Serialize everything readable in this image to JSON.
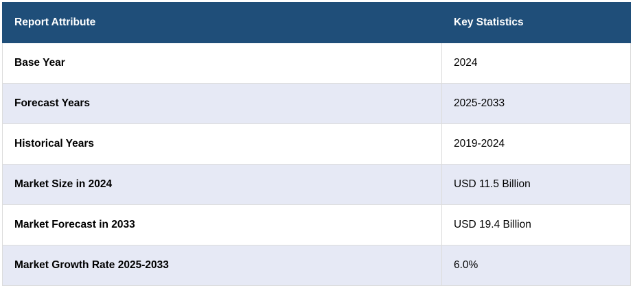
{
  "table": {
    "headers": [
      "Report Attribute",
      "Key Statistics"
    ],
    "rows": [
      [
        "Base Year",
        "2024"
      ],
      [
        "Forecast Years",
        "2025-2033"
      ],
      [
        "Historical Years",
        "2019-2024"
      ],
      [
        "Market Size in 2024",
        "USD 11.5 Billion"
      ],
      [
        "Market Forecast in 2033",
        "USD 19.4 Billion"
      ],
      [
        "Market Growth Rate 2025-2033",
        "6.0%"
      ]
    ]
  },
  "colors": {
    "header_bg": "#1f4e79",
    "alt_row_bg": "#e6e9f5",
    "border": "#dcdcdc"
  }
}
